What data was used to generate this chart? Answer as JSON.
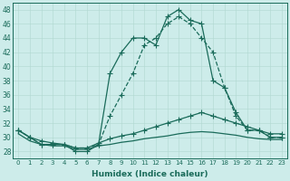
{
  "xlabel": "Humidex (Indice chaleur)",
  "background_color": "#cdecea",
  "line_color": "#1a6b5a",
  "xlim": [
    -0.5,
    23.5
  ],
  "ylim": [
    27,
    49
  ],
  "yticks": [
    28,
    30,
    32,
    34,
    36,
    38,
    40,
    42,
    44,
    46,
    48
  ],
  "xticks": [
    0,
    1,
    2,
    3,
    4,
    5,
    6,
    7,
    8,
    9,
    10,
    11,
    12,
    13,
    14,
    15,
    16,
    17,
    18,
    19,
    20,
    21,
    22,
    23
  ],
  "series": [
    {
      "x": [
        0,
        1,
        2,
        3,
        4,
        5,
        6,
        7,
        8,
        9,
        10,
        11,
        12,
        13,
        14,
        15,
        16,
        17,
        18,
        19,
        20,
        21,
        22,
        23
      ],
      "y": [
        31,
        30,
        29,
        29,
        29,
        28,
        28,
        29,
        39,
        42,
        44,
        44,
        43,
        47,
        48,
        46.5,
        46,
        38,
        37,
        33.5,
        31,
        31,
        30,
        30
      ],
      "marker": "+",
      "ls": "-"
    },
    {
      "x": [
        0,
        1,
        2,
        3,
        4,
        5,
        6,
        7,
        8,
        9,
        10,
        11,
        12,
        13,
        14,
        15,
        16,
        17,
        18,
        19,
        20,
        21,
        22,
        23
      ],
      "y": [
        31,
        30,
        29,
        29,
        29,
        28.5,
        28.5,
        29,
        33,
        36,
        39,
        43,
        44,
        46,
        47,
        46,
        44,
        42,
        37,
        33,
        31,
        31,
        30,
        30
      ],
      "marker": "+",
      "ls": "--"
    },
    {
      "x": [
        0,
        1,
        2,
        3,
        4,
        5,
        6,
        7,
        8,
        9,
        10,
        11,
        12,
        13,
        14,
        15,
        16,
        17,
        18,
        19,
        20,
        21,
        22,
        23
      ],
      "y": [
        31,
        30,
        29.5,
        29.2,
        29.0,
        28.5,
        28.5,
        29.2,
        29.8,
        30.2,
        30.5,
        31.0,
        31.5,
        32.0,
        32.5,
        33.0,
        33.5,
        33.0,
        32.5,
        32.0,
        31.5,
        31.0,
        30.5,
        30.5
      ],
      "marker": "+",
      "ls": "-"
    },
    {
      "x": [
        0,
        1,
        2,
        3,
        4,
        5,
        6,
        7,
        8,
        9,
        10,
        11,
        12,
        13,
        14,
        15,
        16,
        17,
        18,
        19,
        20,
        21,
        22,
        23
      ],
      "y": [
        30.5,
        29.5,
        29.0,
        28.8,
        28.8,
        28.3,
        28.3,
        28.8,
        29.0,
        29.3,
        29.5,
        29.8,
        30.0,
        30.2,
        30.5,
        30.7,
        30.8,
        30.7,
        30.5,
        30.3,
        30.0,
        29.8,
        29.7,
        29.7
      ],
      "marker": null,
      "ls": "-"
    }
  ]
}
